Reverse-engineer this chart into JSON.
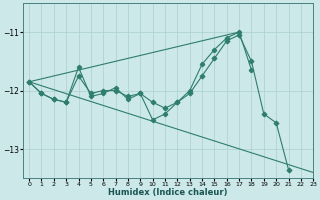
{
  "xlabel": "Humidex (Indice chaleur)",
  "xlim": [
    -0.5,
    23
  ],
  "ylim": [
    -13.5,
    -10.5
  ],
  "yticks": [
    -13,
    -12,
    -11
  ],
  "xticks": [
    0,
    1,
    2,
    3,
    4,
    5,
    6,
    7,
    8,
    9,
    10,
    11,
    12,
    13,
    14,
    15,
    16,
    17,
    18,
    19,
    20,
    21,
    22,
    23
  ],
  "bg_color": "#cce8e8",
  "line_color": "#2e7d6e",
  "grid_color": "#aacfcf",
  "lines": [
    {
      "x": [
        0,
        1,
        2,
        3,
        4,
        5,
        6,
        7,
        8,
        9,
        10,
        11,
        12,
        13,
        14,
        15,
        16,
        17,
        18,
        19,
        20,
        21
      ],
      "y": [
        -11.85,
        -12.05,
        -12.15,
        -12.2,
        -11.75,
        -12.05,
        -12.0,
        -12.0,
        -12.1,
        -12.05,
        -12.2,
        -12.3,
        -12.2,
        -12.05,
        -11.75,
        -11.45,
        -11.15,
        -11.05,
        -11.5,
        -12.4,
        -12.55,
        -13.35
      ],
      "marker": "D",
      "markersize": 2.5,
      "linestyle": "-"
    },
    {
      "x": [
        0,
        1,
        2,
        3,
        4,
        5,
        6,
        7,
        8,
        9,
        10,
        11,
        12,
        13,
        14,
        15,
        16,
        17,
        18
      ],
      "y": [
        -11.85,
        -12.05,
        -12.15,
        -12.2,
        -11.6,
        -12.1,
        -12.05,
        -11.95,
        -12.15,
        -12.05,
        -12.5,
        -12.4,
        -12.2,
        -12.0,
        -11.55,
        -11.3,
        -11.1,
        -11.0,
        -11.65
      ],
      "marker": "P",
      "markersize": 3,
      "linestyle": "-"
    },
    {
      "x": [
        0,
        17
      ],
      "y": [
        -11.85,
        -11.0
      ],
      "marker": null,
      "markersize": 0,
      "linestyle": "-"
    },
    {
      "x": [
        0,
        23
      ],
      "y": [
        -11.85,
        -13.4
      ],
      "marker": null,
      "markersize": 0,
      "linestyle": "-"
    }
  ]
}
